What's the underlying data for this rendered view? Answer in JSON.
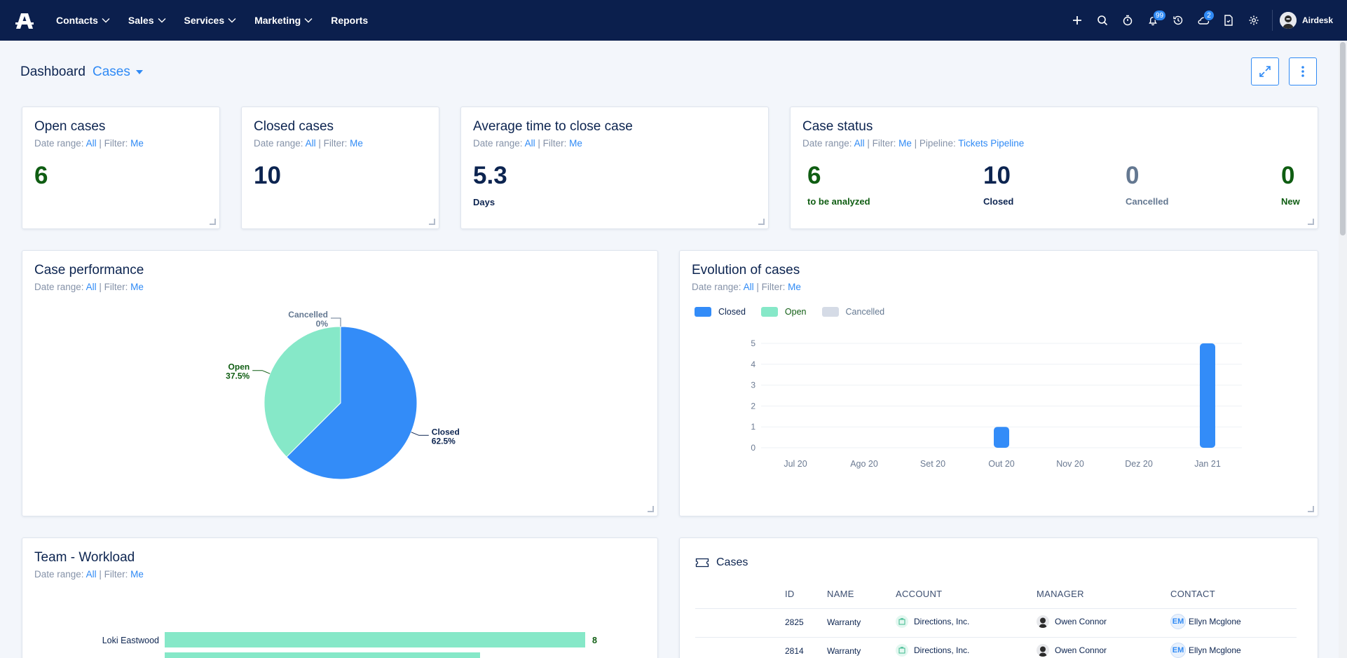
{
  "nav": {
    "items": [
      {
        "label": "Contacts",
        "has_dropdown": true
      },
      {
        "label": "Sales",
        "has_dropdown": true
      },
      {
        "label": "Services",
        "has_dropdown": true
      },
      {
        "label": "Marketing",
        "has_dropdown": true
      },
      {
        "label": "Reports",
        "has_dropdown": false
      }
    ],
    "notifications_badge": "99",
    "updates_badge": "2",
    "user_name": "Airdesk",
    "icons": [
      "plus-icon",
      "search-icon",
      "timer-icon",
      "bell-icon",
      "history-icon",
      "cloud-icon",
      "document-icon",
      "gear-icon"
    ]
  },
  "header": {
    "title": "Dashboard",
    "view": "Cases"
  },
  "filters": {
    "date_range_label": "Date range:",
    "date_range_value": "All",
    "filter_label": "| Filter:",
    "filter_value": "Me",
    "pipeline_label": "| Pipeline:",
    "pipeline_value": "Tickets Pipeline"
  },
  "widgets": {
    "open_cases": {
      "title": "Open cases",
      "value": "6"
    },
    "closed_cases": {
      "title": "Closed cases",
      "value": "10"
    },
    "avg_time": {
      "title": "Average time to close case",
      "value": "5.3",
      "unit": "Days"
    },
    "case_status": {
      "title": "Case status",
      "items": [
        {
          "value": "6",
          "label": "to be analyzed"
        },
        {
          "value": "10",
          "label": "Closed"
        },
        {
          "value": "0",
          "label": "Cancelled"
        },
        {
          "value": "0",
          "label": "New"
        }
      ]
    },
    "case_performance": {
      "title": "Case performance"
    },
    "evolution": {
      "title": "Evolution of cases"
    },
    "team_workload": {
      "title": "Team - Workload"
    },
    "cases_table": {
      "title": "Cases",
      "columns": [
        "ID",
        "NAME",
        "ACCOUNT",
        "MANAGER",
        "CONTACT"
      ],
      "rows": [
        {
          "id": "2825",
          "name": "Warranty",
          "account": "Directions, Inc.",
          "manager": "Owen Connor",
          "contact_initials": "EM",
          "contact": "Ellyn Mcglone"
        },
        {
          "id": "2814",
          "name": "Warranty",
          "account": "Directions, Inc.",
          "manager": "Owen Connor",
          "contact_initials": "EM",
          "contact": "Ellyn Mcglone"
        }
      ]
    }
  },
  "colors": {
    "navbar": "#0b1f4d",
    "accent": "#2f8af5",
    "open": "#86e8c8",
    "closed": "#338cf8",
    "cancelled": "#d5dbe6",
    "green_text": "#0f5d12",
    "grey_text": "#647891"
  },
  "chart_data": [
    {
      "type": "pie",
      "title": "Case performance",
      "slices": [
        {
          "label": "Closed",
          "value": 62.5,
          "display": "62.5%",
          "color": "#338cf8"
        },
        {
          "label": "Open",
          "value": 37.5,
          "display": "37.5%",
          "color": "#86e8c8"
        },
        {
          "label": "Cancelled",
          "value": 0,
          "display": "0%",
          "color": "#d5dbe6"
        }
      ]
    },
    {
      "type": "bar",
      "title": "Evolution of cases",
      "categories": [
        "Jul 20",
        "Ago 20",
        "Set 20",
        "Out 20",
        "Nov 20",
        "Dez 20",
        "Jan 21"
      ],
      "series": [
        {
          "name": "Closed",
          "values": [
            0,
            0,
            0,
            1,
            0,
            0,
            5
          ],
          "color": "#338cf8"
        },
        {
          "name": "Open",
          "values": [
            0,
            0,
            0,
            0,
            0,
            0,
            0
          ],
          "color": "#86e8c8"
        },
        {
          "name": "Cancelled",
          "values": [
            0,
            0,
            0,
            0,
            0,
            0,
            0
          ],
          "color": "#d5dbe6"
        }
      ],
      "ylim": [
        0,
        5
      ],
      "yticks": [
        0,
        1,
        2,
        3,
        4,
        5
      ],
      "legend": "top-left",
      "grid": true
    },
    {
      "type": "bar",
      "orientation": "horizontal",
      "title": "Team - Workload",
      "categories": [
        "Loki Eastwood"
      ],
      "values": [
        8
      ],
      "max": 8,
      "color": "#86e8c8"
    }
  ]
}
